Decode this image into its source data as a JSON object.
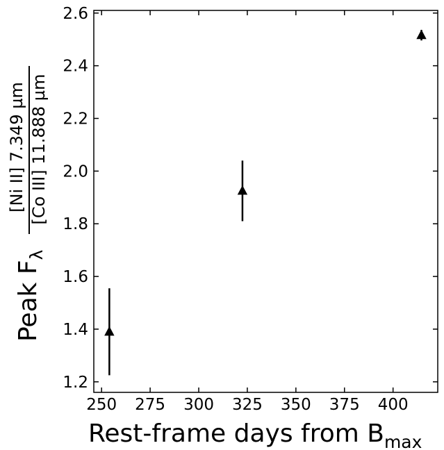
{
  "chart_data": {
    "type": "scatter",
    "xlabel": {
      "main": "Rest-frame days from B",
      "sub": "max"
    },
    "ylabel": {
      "main": "Peak F",
      "sub": "λ",
      "numerator": "[Ni II] 7.349 µm",
      "denominator": "[Co III] 11.888 µm"
    },
    "x": [
      254,
      322.5,
      414.6
    ],
    "values": [
      1.39,
      1.925,
      2.516
    ],
    "errors": [
      0.165,
      0.115,
      0.02
    ],
    "color": "#000000",
    "marker": "triangle-up",
    "xlim": [
      246,
      423
    ],
    "xticks": [
      250,
      275,
      300,
      325,
      350,
      375,
      400
    ],
    "ylim": [
      1.16,
      2.61
    ],
    "yticks": [
      {
        "value": 1.2,
        "label": "1.2"
      },
      {
        "value": 1.4,
        "label": "1.4"
      },
      {
        "value": 1.6,
        "label": "1.6"
      },
      {
        "value": 1.8,
        "label": "1.8"
      },
      {
        "value": 2.0,
        "label": "2.0"
      },
      {
        "value": 2.2,
        "label": "2.2"
      },
      {
        "value": 2.4,
        "label": "2.4"
      },
      {
        "value": 2.6,
        "label": "2.6"
      }
    ],
    "grid": false
  }
}
